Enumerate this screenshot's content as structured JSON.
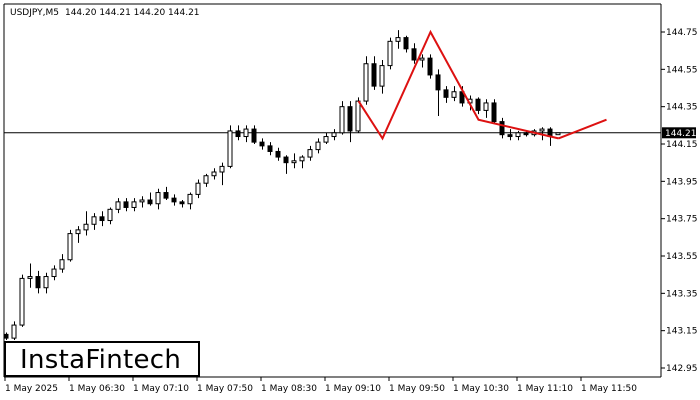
{
  "header": {
    "symbol": "USDJPY,M5",
    "ohlc": "144.20 144.21 144.20 144.21"
  },
  "logo": {
    "text": "InstaFintech"
  },
  "price_badge": "144.21",
  "colors": {
    "candle_outline": "#000000",
    "bull_fill": "#ffffff",
    "bear_fill": "#000000",
    "pattern_line": "#dd1111",
    "badge_bg": "#000000",
    "badge_text": "#ffffff"
  },
  "chart_data": {
    "type": "candlestick",
    "title": "",
    "y_ticks": [
      "144.75",
      "144.55",
      "144.35",
      "144.15",
      "143.95",
      "143.75",
      "143.55",
      "143.35",
      "143.15",
      "142.95"
    ],
    "x_ticks": [
      "1 May 2025",
      "1 May 06:30",
      "1 May 07:10",
      "1 May 07:50",
      "1 May 08:30",
      "1 May 09:10",
      "1 May 09:50",
      "1 May 10:30",
      "1 May 11:10",
      "1 May 11:50"
    ],
    "ylim": [
      142.92,
      144.82
    ],
    "interval_minutes": 5,
    "current_price": 144.21,
    "grid": false,
    "candles": [
      [
        143.13,
        143.14,
        143.1,
        143.11
      ],
      [
        143.11,
        143.2,
        143.1,
        143.18
      ],
      [
        143.18,
        143.45,
        143.17,
        143.43
      ],
      [
        143.43,
        143.51,
        143.38,
        143.44
      ],
      [
        143.44,
        143.47,
        143.35,
        143.38
      ],
      [
        143.38,
        143.46,
        143.35,
        143.44
      ],
      [
        143.44,
        143.5,
        143.42,
        143.48
      ],
      [
        143.48,
        143.56,
        143.46,
        143.53
      ],
      [
        143.53,
        143.69,
        143.52,
        143.67
      ],
      [
        143.67,
        143.71,
        143.62,
        143.69
      ],
      [
        143.69,
        143.79,
        143.66,
        143.72
      ],
      [
        143.72,
        143.78,
        143.69,
        143.76
      ],
      [
        143.76,
        143.79,
        143.71,
        143.74
      ],
      [
        143.74,
        143.81,
        143.72,
        143.8
      ],
      [
        143.8,
        143.86,
        143.78,
        143.84
      ],
      [
        143.84,
        143.86,
        143.79,
        143.81
      ],
      [
        143.81,
        143.86,
        143.79,
        143.84
      ],
      [
        143.84,
        143.87,
        143.81,
        143.85
      ],
      [
        143.85,
        143.89,
        143.82,
        143.83
      ],
      [
        143.83,
        143.91,
        143.8,
        143.89
      ],
      [
        143.89,
        143.92,
        143.85,
        143.86
      ],
      [
        143.86,
        143.88,
        143.82,
        143.84
      ],
      [
        143.84,
        143.85,
        143.81,
        143.83
      ],
      [
        143.83,
        143.89,
        143.8,
        143.88
      ],
      [
        143.88,
        143.96,
        143.86,
        143.94
      ],
      [
        143.94,
        143.99,
        143.92,
        143.98
      ],
      [
        143.98,
        144.02,
        143.96,
        144.0
      ],
      [
        144.0,
        144.05,
        143.93,
        144.03
      ],
      [
        144.03,
        144.25,
        144.02,
        144.22
      ],
      [
        144.22,
        144.25,
        144.17,
        144.19
      ],
      [
        144.19,
        144.25,
        144.16,
        144.23
      ],
      [
        144.23,
        144.25,
        144.15,
        144.16
      ],
      [
        144.16,
        144.18,
        144.12,
        144.14
      ],
      [
        144.14,
        144.16,
        144.09,
        144.11
      ],
      [
        144.11,
        144.13,
        144.06,
        144.08
      ],
      [
        144.08,
        144.09,
        143.99,
        144.05
      ],
      [
        144.05,
        144.1,
        144.02,
        144.06
      ],
      [
        144.06,
        144.09,
        144.02,
        144.08
      ],
      [
        144.08,
        144.14,
        144.06,
        144.12
      ],
      [
        144.12,
        144.18,
        144.1,
        144.16
      ],
      [
        144.16,
        144.21,
        144.15,
        144.19
      ],
      [
        144.19,
        144.23,
        144.17,
        144.21
      ],
      [
        144.21,
        144.38,
        144.2,
        144.35
      ],
      [
        144.35,
        144.38,
        144.16,
        144.22
      ],
      [
        144.22,
        144.4,
        144.21,
        144.38
      ],
      [
        144.38,
        144.62,
        144.36,
        144.58
      ],
      [
        144.58,
        144.62,
        144.44,
        144.46
      ],
      [
        144.46,
        144.6,
        144.42,
        144.57
      ],
      [
        144.57,
        144.72,
        144.55,
        144.7
      ],
      [
        144.7,
        144.76,
        144.66,
        144.72
      ],
      [
        144.72,
        144.73,
        144.64,
        144.66
      ],
      [
        144.66,
        144.69,
        144.58,
        144.6
      ],
      [
        144.6,
        144.63,
        144.56,
        144.61
      ],
      [
        144.61,
        144.63,
        144.5,
        144.52
      ],
      [
        144.52,
        144.55,
        144.3,
        144.44
      ],
      [
        144.44,
        144.46,
        144.37,
        144.4
      ],
      [
        144.4,
        144.46,
        144.38,
        144.43
      ],
      [
        144.43,
        144.46,
        144.35,
        144.37
      ],
      [
        144.37,
        144.41,
        144.33,
        144.39
      ],
      [
        144.39,
        144.4,
        144.31,
        144.33
      ],
      [
        144.33,
        144.39,
        144.29,
        144.37
      ],
      [
        144.37,
        144.39,
        144.26,
        144.27
      ],
      [
        144.27,
        144.29,
        144.18,
        144.2
      ],
      [
        144.2,
        144.23,
        144.17,
        144.19
      ],
      [
        144.19,
        144.22,
        144.17,
        144.21
      ],
      [
        144.21,
        144.22,
        144.19,
        144.2
      ],
      [
        144.2,
        144.23,
        144.19,
        144.22
      ],
      [
        144.22,
        144.24,
        144.17,
        144.23
      ],
      [
        144.23,
        144.24,
        144.14,
        144.19
      ],
      [
        144.2,
        144.21,
        144.2,
        144.21
      ]
    ],
    "annotations": [
      {
        "type": "pattern-line",
        "name": "head-and-shoulders-left",
        "points": [
          [
            0,
            144.38
          ],
          [
            3,
            144.18
          ],
          [
            9,
            144.75
          ],
          [
            15,
            144.28
          ],
          [
            25,
            144.18
          ]
        ]
      },
      {
        "type": "pattern-line",
        "name": "head-and-shoulders-right",
        "points": [
          [
            25,
            144.18
          ],
          [
            31,
            144.28
          ]
        ]
      }
    ]
  }
}
